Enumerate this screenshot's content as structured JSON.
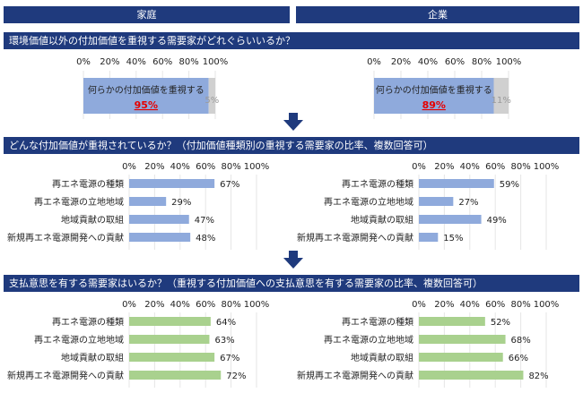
{
  "headers": {
    "household": "家庭",
    "company": "企業"
  },
  "sections": {
    "s1": "環境価値以外の付加価値を重視する需要家がどれぐらいいるか？",
    "s2": "どんな付加価値が重視されているか？（付加価値種類別の重視する需要家の比率、複数回答可）",
    "s3": "支払意思を有する需要家はいるか？（重視する付加価値への支払意思を有する需要家の比率、複数回答可）"
  },
  "colors": {
    "header": "#1f3a7d",
    "blue": "#8faadc",
    "green": "#a9d18e",
    "gray": "#d0d0d0",
    "highlight": "#e60000",
    "arrow": "#1f3a7d"
  },
  "icons": [
    "down-arrow-icon",
    "down-arrow-icon"
  ],
  "chart_data": [
    {
      "type": "bar",
      "orientation": "horizontal",
      "stacked": true,
      "id": "household-overall",
      "xlim": [
        0,
        100
      ],
      "xticks": [
        "0%",
        "20%",
        "40%",
        "60%",
        "80%",
        "100%"
      ],
      "series": [
        {
          "values": [
            95
          ]
        },
        {
          "values": [
            5
          ]
        }
      ],
      "labels": {
        "main": "何らかの付加価値を重視する",
        "main_value": "95%",
        "rest_value": "5%"
      }
    },
    {
      "type": "bar",
      "orientation": "horizontal",
      "stacked": true,
      "id": "company-overall",
      "xlim": [
        0,
        100
      ],
      "xticks": [
        "0%",
        "20%",
        "40%",
        "60%",
        "80%",
        "100%"
      ],
      "series": [
        {
          "values": [
            89
          ]
        },
        {
          "values": [
            11
          ]
        }
      ],
      "labels": {
        "main": "何らかの付加価値を重視する",
        "main_value": "89%",
        "rest_value": "11%"
      }
    },
    {
      "type": "bar",
      "orientation": "horizontal",
      "id": "household-value-types",
      "xlim": [
        0,
        100
      ],
      "xticks": [
        "0%",
        "20%",
        "40%",
        "60%",
        "80%",
        "100%"
      ],
      "categories": [
        "再エネ電源の種類",
        "再エネ電源の立地地域",
        "地域貢献の取組",
        "新規再エネ電源開発への貢献"
      ],
      "values": [
        67,
        29,
        47,
        48
      ],
      "value_labels": [
        "67%",
        "29%",
        "47%",
        "48%"
      ]
    },
    {
      "type": "bar",
      "orientation": "horizontal",
      "id": "company-value-types",
      "xlim": [
        0,
        100
      ],
      "xticks": [
        "0%",
        "20%",
        "40%",
        "60%",
        "80%",
        "100%"
      ],
      "categories": [
        "再エネ電源の種類",
        "再エネ電源の立地地域",
        "地域貢献の取組",
        "新規再エネ電源開発への貢献"
      ],
      "values": [
        59,
        27,
        49,
        15
      ],
      "value_labels": [
        "59%",
        "27%",
        "49%",
        "15%"
      ]
    },
    {
      "type": "bar",
      "orientation": "horizontal",
      "id": "household-willingness",
      "xlim": [
        0,
        100
      ],
      "xticks": [
        "0%",
        "20%",
        "40%",
        "60%",
        "80%",
        "100%"
      ],
      "categories": [
        "再エネ電源の種類",
        "再エネ電源の立地地域",
        "地域貢献の取組",
        "新規再エネ電源開発への貢献"
      ],
      "values": [
        64,
        63,
        67,
        72
      ],
      "value_labels": [
        "64%",
        "63%",
        "67%",
        "72%"
      ]
    },
    {
      "type": "bar",
      "orientation": "horizontal",
      "id": "company-willingness",
      "xlim": [
        0,
        100
      ],
      "xticks": [
        "0%",
        "20%",
        "40%",
        "60%",
        "80%",
        "100%"
      ],
      "categories": [
        "再エネ電源の種類",
        "再エネ電源の立地地域",
        "地域貢献の取組",
        "新規再エネ電源開発への貢献"
      ],
      "values": [
        52,
        68,
        66,
        82
      ],
      "value_labels": [
        "52%",
        "68%",
        "66%",
        "82%"
      ]
    }
  ]
}
